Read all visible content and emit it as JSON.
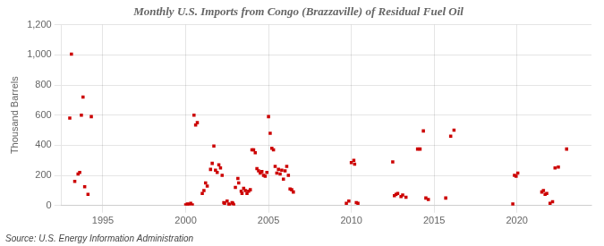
{
  "chart_data": {
    "type": "scatter",
    "title": "Monthly U.S. Imports from Congo (Brazzaville) of Residual Fuel Oil",
    "y_label": "Thousand Barrels",
    "annotations": [
      "Source: U.S. Energy Information Administration"
    ],
    "color": "#cc0000",
    "marker": "square",
    "grid": true,
    "xlim": [
      1992.5,
      2024.5
    ],
    "xticks": [
      1995,
      2000,
      2005,
      2010,
      2015,
      2020
    ],
    "ylim": [
      0,
      1200
    ],
    "yticks": [
      0,
      200,
      400,
      600,
      800,
      {
        "value": 1000,
        "label": "1,000"
      },
      {
        "value": 1200,
        "label": "1,200"
      }
    ],
    "x": [
      1993.0,
      1993.1,
      1993.3,
      1993.5,
      1993.6,
      1993.7,
      1993.8,
      1993.9,
      1994.1,
      1994.3,
      2000.0,
      2000.1,
      2000.2,
      2000.3,
      2000.4,
      2000.5,
      2000.6,
      2000.7,
      2001.0,
      2001.1,
      2001.2,
      2001.3,
      2001.5,
      2001.6,
      2001.7,
      2001.8,
      2001.9,
      2002.0,
      2002.1,
      2002.2,
      2002.3,
      2002.35,
      2002.5,
      2002.6,
      2002.65,
      2002.8,
      2002.85,
      2002.9,
      2003.0,
      2003.15,
      2003.2,
      2003.35,
      2003.4,
      2003.5,
      2003.6,
      2003.7,
      2003.8,
      2003.9,
      2004.0,
      2004.1,
      2004.2,
      2004.3,
      2004.4,
      2004.5,
      2004.6,
      2004.7,
      2004.8,
      2004.9,
      2005.0,
      2005.1,
      2005.2,
      2005.3,
      2005.4,
      2005.5,
      2005.6,
      2005.7,
      2005.8,
      2005.9,
      2006.0,
      2006.1,
      2006.2,
      2006.3,
      2006.4,
      2006.5,
      2009.7,
      2009.85,
      2010.0,
      2010.15,
      2010.2,
      2010.3,
      2010.4,
      2012.5,
      2012.6,
      2012.7,
      2012.8,
      2013.0,
      2013.1,
      2013.3,
      2014.0,
      2014.15,
      2014.35,
      2014.5,
      2014.65,
      2015.7,
      2016.0,
      2016.2,
      2019.75,
      2019.85,
      2019.95,
      2020.05,
      2021.5,
      2021.6,
      2021.7,
      2021.8,
      2022.0,
      2022.15,
      2022.3,
      2022.5,
      2023.0
    ],
    "values": [
      580,
      1005,
      160,
      210,
      220,
      600,
      720,
      125,
      75,
      590,
      5,
      10,
      8,
      15,
      5,
      600,
      535,
      550,
      80,
      100,
      150,
      130,
      240,
      280,
      395,
      235,
      220,
      270,
      250,
      200,
      20,
      15,
      30,
      10,
      5,
      20,
      15,
      5,
      120,
      180,
      150,
      95,
      80,
      115,
      100,
      80,
      95,
      105,
      370,
      370,
      350,
      245,
      230,
      215,
      225,
      200,
      195,
      220,
      590,
      480,
      380,
      370,
      260,
      215,
      240,
      210,
      235,
      175,
      230,
      260,
      200,
      110,
      105,
      90,
      15,
      30,
      285,
      300,
      275,
      20,
      15,
      290,
      65,
      75,
      80,
      60,
      70,
      55,
      375,
      375,
      495,
      50,
      40,
      50,
      460,
      500,
      10,
      200,
      195,
      215,
      90,
      100,
      75,
      80,
      15,
      25,
      250,
      255,
      375
    ]
  }
}
